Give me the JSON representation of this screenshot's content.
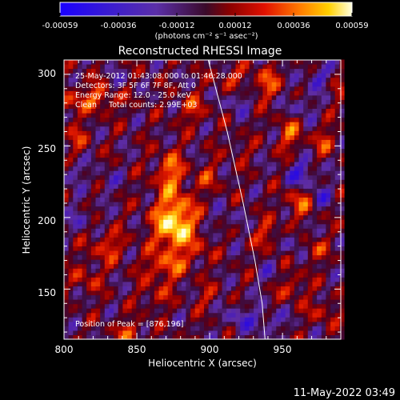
{
  "chart_data": {
    "type": "heatmap",
    "title": "Reconstructed RHESSI Image",
    "xlabel": "Heliocentric X (arcsec)",
    "ylabel": "Heliocentric Y (arcsec)",
    "xlim": [
      800,
      990
    ],
    "ylim": [
      115,
      310
    ],
    "x_ticks": [
      800,
      850,
      900,
      950
    ],
    "y_ticks": [
      150,
      200,
      250,
      300
    ],
    "colorbar": {
      "ticks": [
        "-0.00059",
        "-0.00036",
        "-0.00012",
        "0.00012",
        "0.00036",
        "0.00059"
      ],
      "unit_label": "(photons cm⁻² s⁻¹ asec⁻²)",
      "range": [
        -0.00059,
        0.00059
      ]
    },
    "annotations": [
      "25-May-2012 01:43:08.000 to 01:46:28.000",
      "Detectors: 3F 5F 6F 7F 8F, Att 0",
      "Energy Range: 12.0 - 25.0 keV",
      "Clean     Total counts: 2.99E+03"
    ],
    "peak": {
      "label": "Position of Peak = [876,196]",
      "x": 876,
      "y": 196
    },
    "limb_curve": [
      [
        899,
        310
      ],
      [
        912,
        260
      ],
      [
        923,
        210
      ],
      [
        931,
        170
      ],
      [
        936,
        140
      ],
      [
        938,
        115
      ]
    ],
    "hot_blobs": [
      [
        876,
        196,
        1.0,
        14,
        20
      ],
      [
        873,
        232,
        0.55,
        10,
        14
      ],
      [
        869,
        165,
        0.45,
        14,
        10
      ],
      [
        863,
        145,
        0.3,
        10,
        8
      ],
      [
        826,
        285,
        0.5,
        14,
        10
      ],
      [
        803,
        280,
        0.35,
        10,
        10
      ],
      [
        809,
        255,
        0.3,
        8,
        10
      ],
      [
        830,
        180,
        0.4,
        12,
        10
      ],
      [
        816,
        158,
        0.3,
        10,
        10
      ],
      [
        845,
        120,
        0.4,
        10,
        8
      ],
      [
        900,
        228,
        0.3,
        8,
        10
      ],
      [
        888,
        276,
        0.35,
        10,
        10
      ],
      [
        893,
        176,
        0.25,
        8,
        8
      ],
      [
        898,
        145,
        0.25,
        8,
        8
      ],
      [
        915,
        298,
        0.35,
        10,
        8
      ],
      [
        938,
        290,
        0.35,
        10,
        8
      ],
      [
        955,
        258,
        0.45,
        8,
        12
      ],
      [
        979,
        253,
        0.35,
        8,
        10
      ],
      [
        962,
        212,
        0.45,
        10,
        12
      ],
      [
        940,
        188,
        0.4,
        8,
        10
      ],
      [
        972,
        178,
        0.35,
        8,
        8
      ],
      [
        956,
        152,
        0.35,
        10,
        10
      ],
      [
        978,
        135,
        0.3,
        10,
        8
      ],
      [
        940,
        300,
        0.3,
        8,
        8
      ],
      [
        987,
        290,
        0.2,
        6,
        8
      ],
      [
        920,
        248,
        0.2,
        8,
        8
      ]
    ],
    "cold_wells": [
      [
        963,
        230,
        0.55,
        10,
        10
      ],
      [
        974,
        298,
        0.45,
        8,
        8
      ],
      [
        963,
        278,
        0.35,
        8,
        8
      ],
      [
        919,
        282,
        0.35,
        8,
        8
      ],
      [
        921,
        130,
        0.35,
        10,
        10
      ],
      [
        941,
        128,
        0.35,
        10,
        8
      ],
      [
        806,
        232,
        0.3,
        8,
        8
      ],
      [
        830,
        225,
        0.25,
        8,
        8
      ],
      [
        812,
        200,
        0.3,
        8,
        8
      ],
      [
        835,
        293,
        0.3,
        8,
        8
      ],
      [
        910,
        200,
        0.25,
        8,
        8
      ],
      [
        957,
        183,
        0.3,
        8,
        8
      ],
      [
        977,
        215,
        0.35,
        8,
        8
      ],
      [
        942,
        160,
        0.25,
        8,
        8
      ]
    ]
  },
  "footer": {
    "date": "11-May-2022 03:49"
  }
}
